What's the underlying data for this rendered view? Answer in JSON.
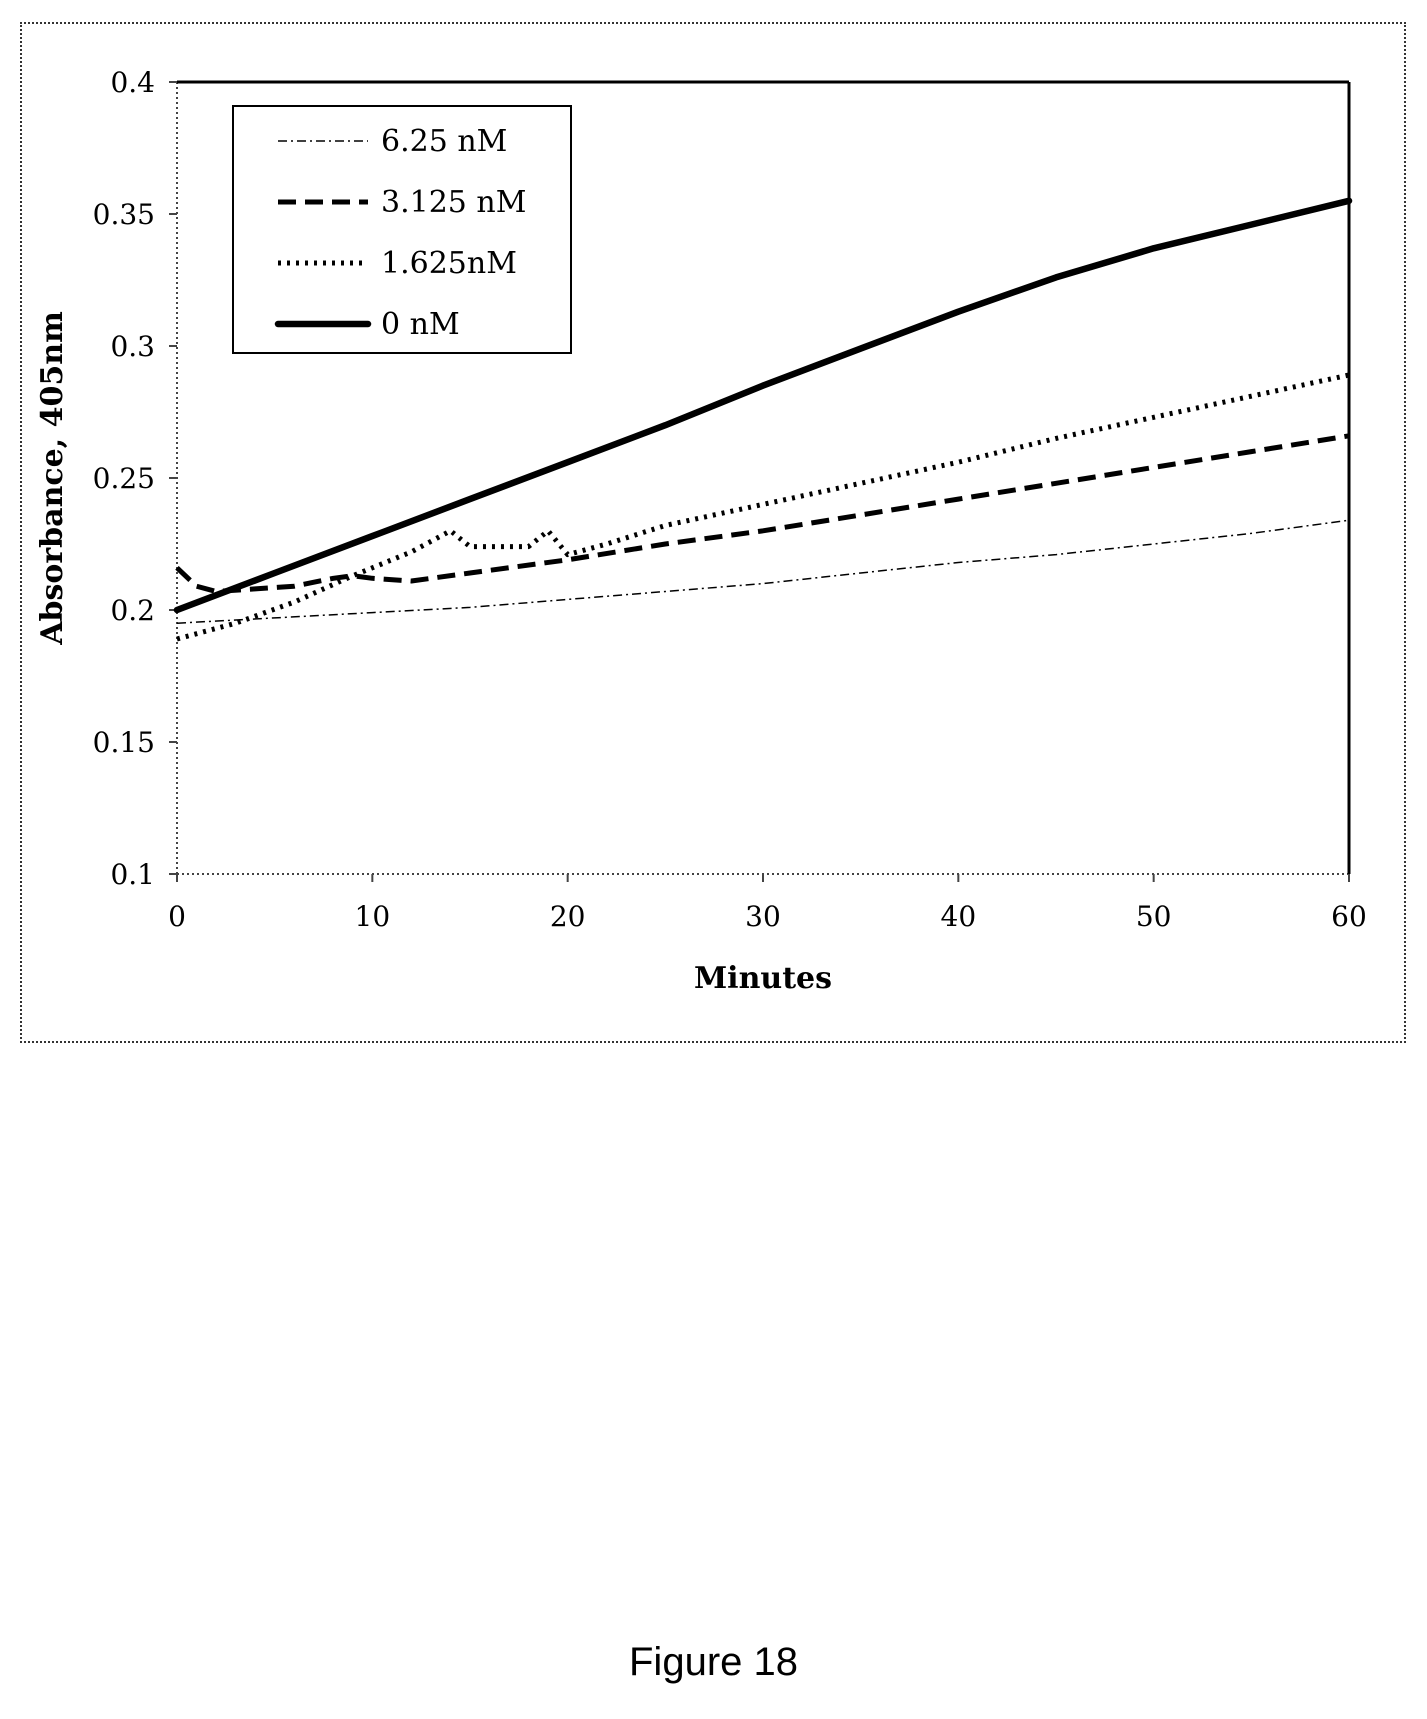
{
  "figure_caption": "Figure 18",
  "chart_data": {
    "type": "line",
    "xlabel": "Minutes",
    "ylabel": "Absorbance, 405nm",
    "xlim": [
      0,
      60
    ],
    "ylim": [
      0.1,
      0.4
    ],
    "x_ticks": [
      "0",
      "10",
      "20",
      "30",
      "40",
      "50",
      "60"
    ],
    "y_ticks": [
      "0.1",
      "0.15",
      "0.2",
      "0.25",
      "0.3",
      "0.35",
      "0.4"
    ],
    "grid": false,
    "legend_position": "top-left",
    "series": [
      {
        "name": "6.25 nM",
        "style": "dash-dot-thin",
        "points": [
          [
            0,
            0.195
          ],
          [
            5,
            0.197
          ],
          [
            10,
            0.199
          ],
          [
            15,
            0.201
          ],
          [
            20,
            0.204
          ],
          [
            25,
            0.207
          ],
          [
            30,
            0.21
          ],
          [
            35,
            0.214
          ],
          [
            40,
            0.218
          ],
          [
            45,
            0.221
          ],
          [
            50,
            0.225
          ],
          [
            55,
            0.229
          ],
          [
            60,
            0.234
          ]
        ]
      },
      {
        "name": "3.125 nM",
        "style": "dashed",
        "points": [
          [
            0,
            0.216
          ],
          [
            1,
            0.209
          ],
          [
            2,
            0.207
          ],
          [
            4,
            0.208
          ],
          [
            6,
            0.209
          ],
          [
            8,
            0.212
          ],
          [
            9,
            0.213
          ],
          [
            10,
            0.212
          ],
          [
            12,
            0.211
          ],
          [
            15,
            0.214
          ],
          [
            20,
            0.219
          ],
          [
            25,
            0.225
          ],
          [
            30,
            0.23
          ],
          [
            35,
            0.236
          ],
          [
            40,
            0.242
          ],
          [
            45,
            0.248
          ],
          [
            50,
            0.254
          ],
          [
            55,
            0.26
          ],
          [
            60,
            0.266
          ]
        ]
      },
      {
        "name": "1.625nM",
        "style": "dotted",
        "points": [
          [
            0,
            0.189
          ],
          [
            3,
            0.195
          ],
          [
            6,
            0.203
          ],
          [
            9,
            0.213
          ],
          [
            12,
            0.222
          ],
          [
            14,
            0.23
          ],
          [
            15,
            0.224
          ],
          [
            18,
            0.224
          ],
          [
            19,
            0.23
          ],
          [
            20,
            0.221
          ],
          [
            22,
            0.225
          ],
          [
            25,
            0.232
          ],
          [
            30,
            0.24
          ],
          [
            35,
            0.248
          ],
          [
            40,
            0.256
          ],
          [
            45,
            0.265
          ],
          [
            50,
            0.273
          ],
          [
            55,
            0.281
          ],
          [
            60,
            0.289
          ]
        ]
      },
      {
        "name": "0 nM",
        "style": "solid-thick",
        "points": [
          [
            0,
            0.2
          ],
          [
            5,
            0.214
          ],
          [
            10,
            0.228
          ],
          [
            15,
            0.242
          ],
          [
            20,
            0.256
          ],
          [
            25,
            0.27
          ],
          [
            30,
            0.285
          ],
          [
            35,
            0.299
          ],
          [
            40,
            0.313
          ],
          [
            45,
            0.326
          ],
          [
            50,
            0.337
          ],
          [
            55,
            0.346
          ],
          [
            60,
            0.355
          ]
        ]
      }
    ]
  }
}
